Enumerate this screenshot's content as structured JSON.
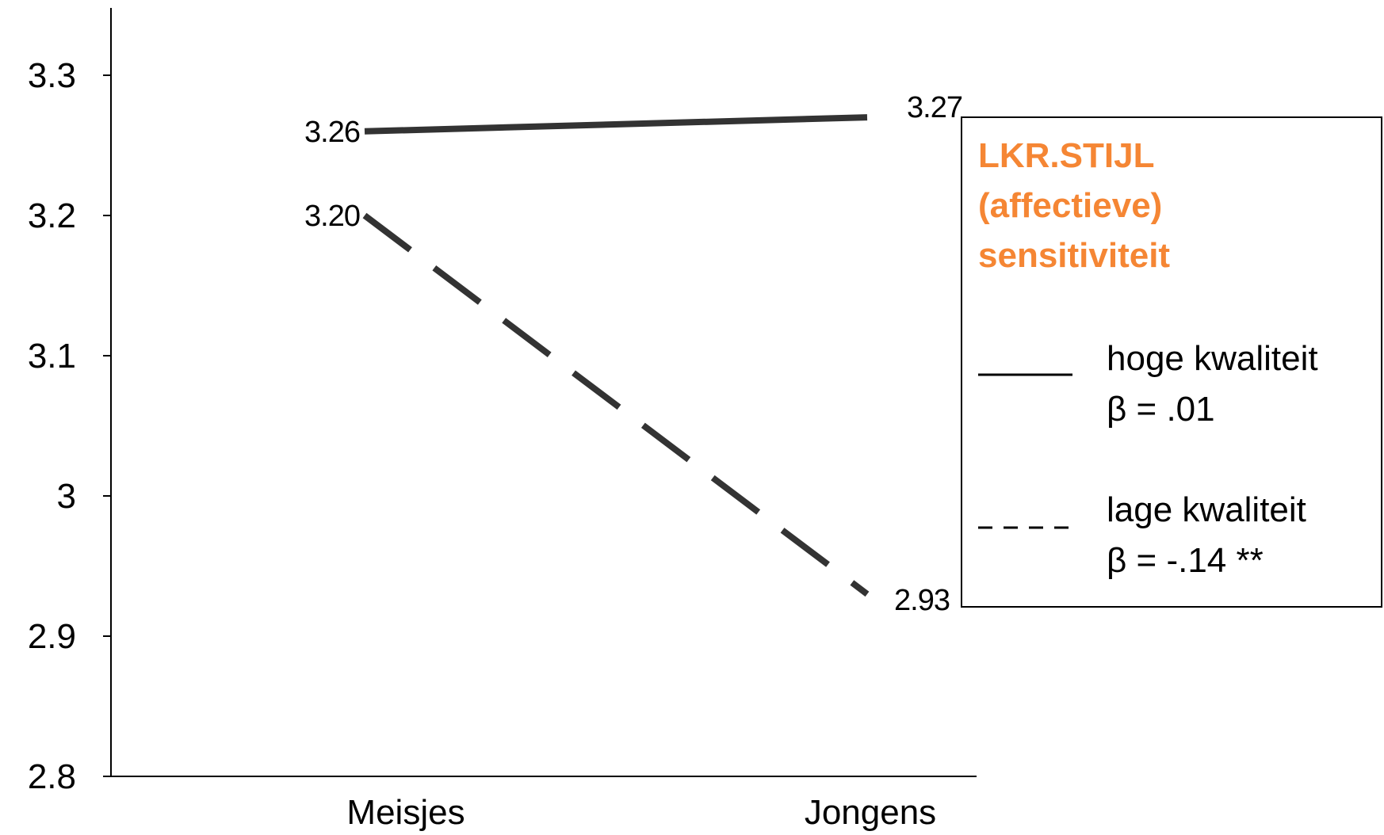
{
  "colors": {
    "legend_title": "#F58634",
    "series_line": "#333333",
    "axis": "#000000"
  },
  "chart_data": {
    "type": "line",
    "categories": [
      "Meisjes",
      "Jongens"
    ],
    "ylim": [
      2.8,
      3.35
    ],
    "yticks": [
      "3.3",
      "3.2",
      "3.1",
      "3",
      "2.9",
      "2.8"
    ],
    "ytick_values": [
      3.3,
      3.2,
      3.1,
      3.0,
      2.9,
      2.8
    ],
    "grid": false,
    "legend_position": "right",
    "legend_title_lines": [
      "LKR.STIJL",
      "(affectieve)",
      "sensitiviteit"
    ],
    "series": [
      {
        "name": "hoge kwaliteit",
        "stat": "β = .01",
        "style": "solid",
        "values": [
          3.26,
          3.27
        ],
        "labels": [
          "3.26",
          "3.27"
        ]
      },
      {
        "name": "lage kwaliteit",
        "stat": "β = -.14 **",
        "style": "dashed",
        "values": [
          3.2,
          2.93
        ],
        "labels": [
          "3.20",
          "2.93"
        ]
      }
    ]
  }
}
